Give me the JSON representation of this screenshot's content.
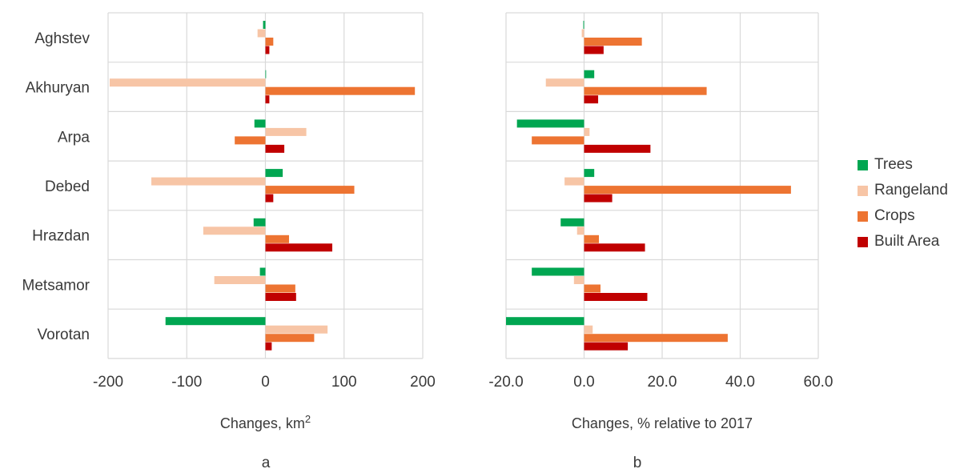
{
  "chart_data": [
    {
      "type": "bar",
      "orientation": "horizontal",
      "panel_label": "a",
      "xlabel": "Changes, km",
      "xlabel_superscript": "2",
      "ylabel": "",
      "xlim": [
        -200,
        200
      ],
      "xticks": [
        -200,
        -100,
        0,
        100,
        200
      ],
      "xtick_labels": [
        "-200",
        "-100",
        "0",
        "100",
        "200"
      ],
      "grid": true,
      "categories": [
        "Aghstev",
        "Akhuryan",
        "Arpa",
        "Debed",
        "Hrazdan",
        "Metsamor",
        "Vorotan"
      ],
      "series": [
        {
          "name": "Trees",
          "values": [
            -3,
            0,
            -14,
            22,
            -15,
            -7,
            -127
          ]
        },
        {
          "name": "Rangeland",
          "values": [
            -10,
            -198,
            52,
            -145,
            -79,
            -65,
            79
          ]
        },
        {
          "name": "Crops",
          "values": [
            10,
            190,
            -39,
            113,
            30,
            38,
            62
          ]
        },
        {
          "name": "Built Area",
          "values": [
            5,
            5,
            24,
            10,
            85,
            39,
            8
          ]
        }
      ]
    },
    {
      "type": "bar",
      "orientation": "horizontal",
      "panel_label": "b",
      "xlabel": "Changes, % relative to 2017",
      "ylabel": "",
      "xlim": [
        -20,
        60
      ],
      "xticks": [
        -20,
        0,
        20,
        40,
        60
      ],
      "xtick_labels": [
        "-20.0",
        "0.0",
        "20.0",
        "40.0",
        "60.0"
      ],
      "grid": true,
      "categories": [
        "Aghstev",
        "Akhuryan",
        "Arpa",
        "Debed",
        "Hrazdan",
        "Metsamor",
        "Vorotan"
      ],
      "series": [
        {
          "name": "Trees",
          "values": [
            -0.2,
            2.6,
            -17.2,
            2.6,
            -6.0,
            -13.4,
            -20.0
          ]
        },
        {
          "name": "Rangeland",
          "values": [
            -0.6,
            -9.8,
            1.4,
            -5.0,
            -1.8,
            -2.6,
            2.2
          ]
        },
        {
          "name": "Crops",
          "values": [
            14.8,
            31.4,
            -13.4,
            53.0,
            3.8,
            4.2,
            36.8
          ]
        },
        {
          "name": "Built Area",
          "values": [
            5.0,
            3.6,
            17.0,
            7.2,
            15.6,
            16.2,
            11.2
          ]
        }
      ]
    }
  ],
  "legend": {
    "placement": "right",
    "items": [
      {
        "label": "Trees",
        "color": "#00a651"
      },
      {
        "label": "Rangeland",
        "color": "#f7c5a6"
      },
      {
        "label": "Crops",
        "color": "#ed7432"
      },
      {
        "label": "Built Area",
        "color": "#c00000"
      }
    ]
  },
  "colors": {
    "grid": "#d9d9d9",
    "text": "#3a3a3a"
  }
}
